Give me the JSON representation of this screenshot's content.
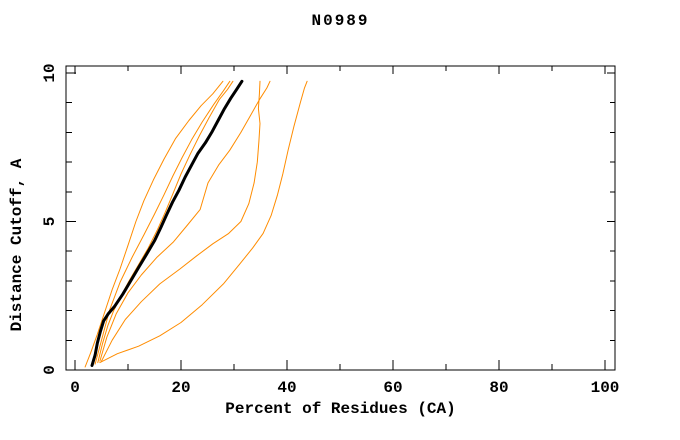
{
  "page": {
    "background": "#ffffff"
  },
  "chart_data": {
    "type": "line",
    "title": "N0989",
    "xlabel": "Percent of Residues (CA)",
    "ylabel": "Distance Cutoff, A",
    "xlim": [
      0,
      100
    ],
    "ylim": [
      0,
      10
    ],
    "grid": false,
    "legend": "none",
    "frame": "box-with-inward-ticks",
    "x_axis": {
      "major_ticks": [
        0,
        20,
        40,
        60,
        80,
        100
      ],
      "minor_ticks": [
        10,
        30,
        50,
        70,
        90
      ]
    },
    "y_axis": {
      "major_ticks": [
        0,
        5,
        10
      ],
      "minor_ticks": [
        1,
        2,
        3,
        4,
        6,
        7,
        8,
        9
      ]
    },
    "colors": {
      "model_lines": "#ff8c00",
      "main_line": "#000000"
    },
    "series": [
      {
        "name": "orange-curve-1",
        "color": "#ff8c00",
        "stroke_width": 1,
        "points": [
          [
            1.9,
            0.1
          ],
          [
            3,
            0.6
          ],
          [
            4.2,
            1.2
          ],
          [
            5.5,
            1.9
          ],
          [
            7,
            2.7
          ],
          [
            8.5,
            3.4
          ],
          [
            10,
            4.2
          ],
          [
            11.5,
            5.0
          ],
          [
            13,
            5.7
          ],
          [
            14.8,
            6.4
          ],
          [
            16.8,
            7.1
          ],
          [
            19,
            7.8
          ],
          [
            21.5,
            8.4
          ],
          [
            23.8,
            8.9
          ],
          [
            26,
            9.3
          ],
          [
            27.9,
            9.72
          ]
        ]
      },
      {
        "name": "orange-curve-2",
        "color": "#ff8c00",
        "stroke_width": 1,
        "points": [
          [
            3.8,
            0.2
          ],
          [
            5,
            1.0
          ],
          [
            6.5,
            2.0
          ],
          [
            8.5,
            2.95
          ],
          [
            10.8,
            3.8
          ],
          [
            13,
            4.55
          ],
          [
            15,
            5.25
          ],
          [
            16.8,
            5.9
          ],
          [
            18.5,
            6.55
          ],
          [
            20.2,
            7.15
          ],
          [
            22,
            7.75
          ],
          [
            24,
            8.35
          ],
          [
            26.2,
            8.95
          ],
          [
            28,
            9.4
          ],
          [
            29.2,
            9.72
          ]
        ]
      },
      {
        "name": "orange-curve-3",
        "color": "#ff8c00",
        "stroke_width": 1,
        "points": [
          [
            4.3,
            0.25
          ],
          [
            5.2,
            0.9
          ],
          [
            6.2,
            1.5
          ],
          [
            7.3,
            2.0
          ],
          [
            8.7,
            2.5
          ],
          [
            10.2,
            3.0
          ],
          [
            12,
            3.55
          ],
          [
            13.8,
            4.1
          ],
          [
            15.5,
            4.7
          ],
          [
            17,
            5.3
          ],
          [
            18.5,
            5.95
          ],
          [
            20,
            6.6
          ],
          [
            21.7,
            7.25
          ],
          [
            23.5,
            7.9
          ],
          [
            25.3,
            8.5
          ],
          [
            27.2,
            9.1
          ],
          [
            28.8,
            9.45
          ],
          [
            29.8,
            9.72
          ]
        ]
      },
      {
        "name": "orange-curve-4",
        "color": "#ff8c00",
        "stroke_width": 1,
        "points": [
          [
            4.7,
            0.3
          ],
          [
            6,
            1.1
          ],
          [
            7.8,
            1.9
          ],
          [
            10,
            2.6
          ],
          [
            12.5,
            3.2
          ],
          [
            15.5,
            3.8
          ],
          [
            18.5,
            4.3
          ],
          [
            21.3,
            4.9
          ],
          [
            23.6,
            5.4
          ],
          [
            25.1,
            6.3
          ],
          [
            27.1,
            6.9
          ],
          [
            29.2,
            7.4
          ],
          [
            31.3,
            8.0
          ],
          [
            33.2,
            8.6
          ],
          [
            34.8,
            9.1
          ],
          [
            36.2,
            9.5
          ],
          [
            36.8,
            9.72
          ]
        ]
      },
      {
        "name": "orange-curve-5",
        "color": "#ff8c00",
        "stroke_width": 1,
        "points": [
          [
            5,
            0.3
          ],
          [
            7,
            1.0
          ],
          [
            9.5,
            1.7
          ],
          [
            12.5,
            2.3
          ],
          [
            16,
            2.9
          ],
          [
            19.8,
            3.4
          ],
          [
            23,
            3.85
          ],
          [
            26,
            4.25
          ],
          [
            29,
            4.6
          ],
          [
            31.3,
            5.0
          ],
          [
            32.8,
            5.6
          ],
          [
            33.8,
            6.3
          ],
          [
            34.4,
            7.0
          ],
          [
            34.7,
            7.7
          ],
          [
            34.9,
            8.3
          ],
          [
            34.6,
            8.8
          ],
          [
            34.8,
            9.3
          ],
          [
            34.9,
            9.72
          ]
        ]
      },
      {
        "name": "orange-curve-6",
        "color": "#ff8c00",
        "stroke_width": 1,
        "points": [
          [
            4.7,
            0.25
          ],
          [
            8,
            0.55
          ],
          [
            12,
            0.8
          ],
          [
            16,
            1.15
          ],
          [
            20,
            1.6
          ],
          [
            24,
            2.2
          ],
          [
            28,
            2.9
          ],
          [
            31,
            3.55
          ],
          [
            33.5,
            4.1
          ],
          [
            35.5,
            4.6
          ],
          [
            37,
            5.2
          ],
          [
            38.2,
            5.9
          ],
          [
            39.2,
            6.6
          ],
          [
            40.2,
            7.4
          ],
          [
            41.3,
            8.2
          ],
          [
            42.5,
            9.0
          ],
          [
            43.3,
            9.5
          ],
          [
            43.8,
            9.72
          ]
        ]
      },
      {
        "name": "black-main-curve",
        "color": "#000000",
        "stroke_width": 3,
        "points": [
          [
            3.2,
            0.15
          ],
          [
            3.8,
            0.5
          ],
          [
            4.2,
            0.9
          ],
          [
            4.8,
            1.3
          ],
          [
            5.4,
            1.65
          ],
          [
            6.3,
            1.9
          ],
          [
            7.5,
            2.15
          ],
          [
            9,
            2.55
          ],
          [
            10.5,
            3.0
          ],
          [
            12,
            3.45
          ],
          [
            13.5,
            3.9
          ],
          [
            15,
            4.35
          ],
          [
            16.2,
            4.8
          ],
          [
            17.2,
            5.2
          ],
          [
            18.4,
            5.65
          ],
          [
            19.6,
            6.05
          ],
          [
            20.8,
            6.5
          ],
          [
            22,
            6.9
          ],
          [
            23.2,
            7.3
          ],
          [
            24.6,
            7.65
          ],
          [
            25.8,
            8.0
          ],
          [
            27,
            8.4
          ],
          [
            28.2,
            8.8
          ],
          [
            29.4,
            9.15
          ],
          [
            30.5,
            9.45
          ],
          [
            31.5,
            9.72
          ]
        ]
      }
    ]
  }
}
